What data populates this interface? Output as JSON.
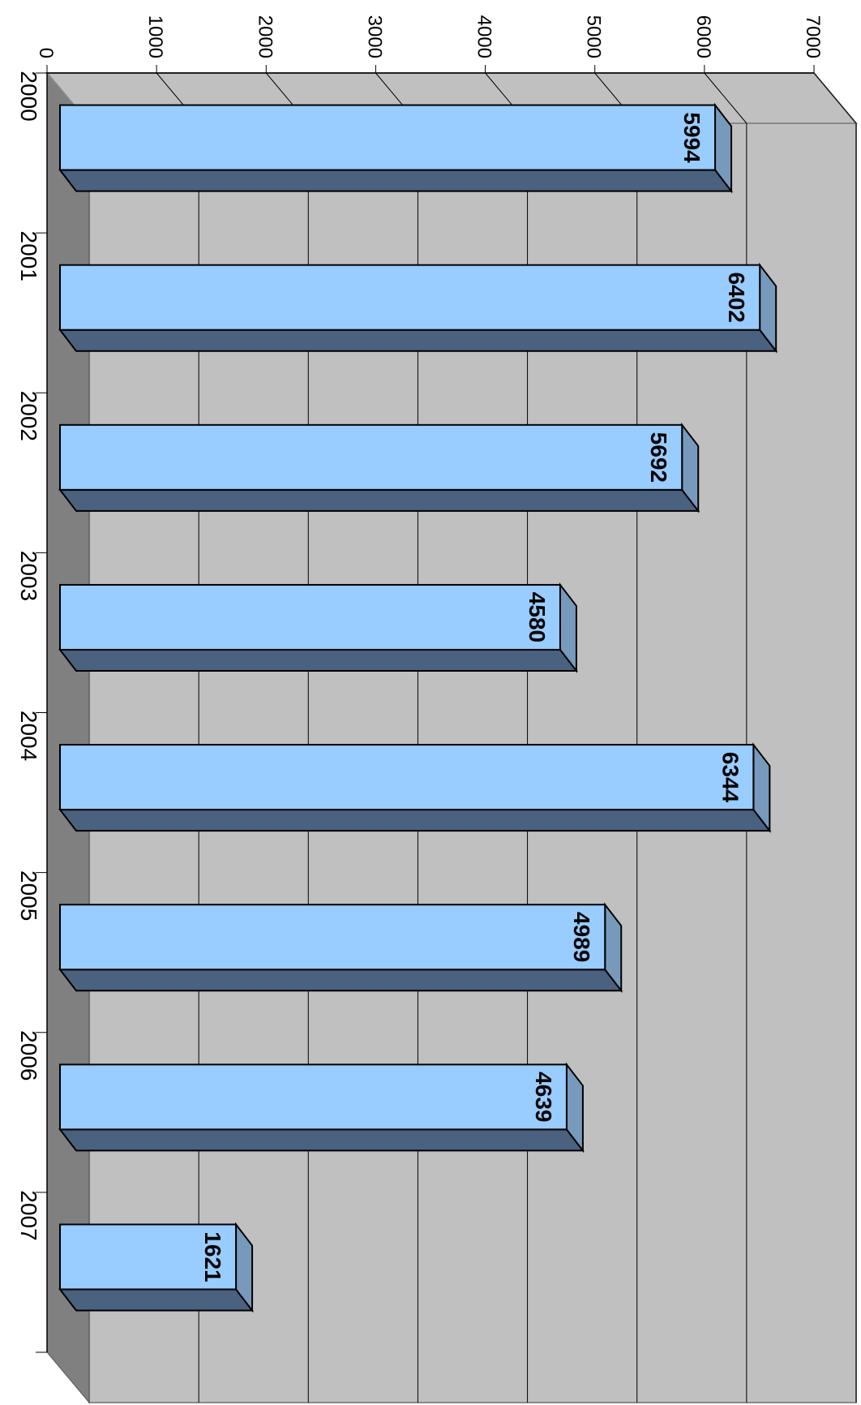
{
  "chart_data": {
    "type": "bar",
    "orientation": "horizontal-3d",
    "categories": [
      "2000",
      "2001",
      "2002",
      "2003",
      "2004",
      "2005",
      "2006",
      "2007"
    ],
    "values": [
      5994,
      6402,
      5692,
      4580,
      6344,
      4989,
      4639,
      1621
    ],
    "axis_ticks": [
      "0",
      "1000",
      "2000",
      "3000",
      "4000",
      "5000",
      "6000",
      "7000"
    ],
    "xlim": [
      0,
      7000
    ],
    "title": "",
    "xlabel": "",
    "ylabel": "",
    "grid": true,
    "legend": "none",
    "colors": {
      "bar_front": "#99ccff",
      "bar_side": "#4a6180",
      "bar_top": "#7799bb",
      "wall_back": "#c0c0c0",
      "wall_side": "#808080",
      "floor": "#c0c0c0"
    }
  }
}
